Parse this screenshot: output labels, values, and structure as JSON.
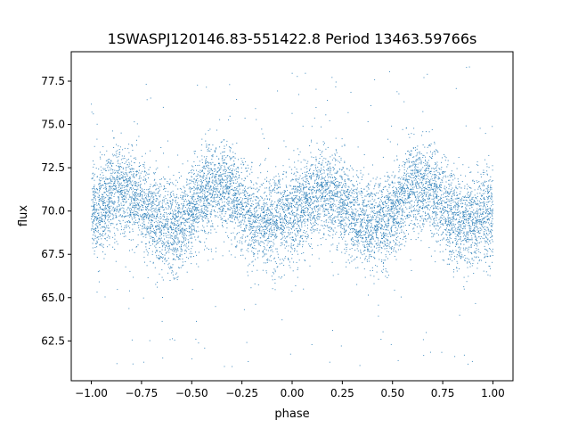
{
  "chart_data": {
    "type": "scatter",
    "title": "1SWASPJ120146.83-551422.8 Period 13463.59766s",
    "xlabel": "phase",
    "ylabel": "flux",
    "xlim": [
      -1.1,
      1.1
    ],
    "ylim": [
      60.2,
      79.2
    ],
    "xticks": [
      -1.0,
      -0.75,
      -0.5,
      -0.25,
      0.0,
      0.25,
      0.5,
      0.75,
      1.0
    ],
    "xtick_labels": [
      "−1.00",
      "−0.75",
      "−0.50",
      "−0.25",
      "0.00",
      "0.25",
      "0.50",
      "0.75",
      "1.00"
    ],
    "yticks": [
      62.5,
      65.0,
      67.5,
      70.0,
      72.5,
      75.0,
      77.5
    ],
    "ytick_labels": [
      "62.5",
      "65.0",
      "67.5",
      "70.0",
      "72.5",
      "75.0",
      "77.5"
    ],
    "grid": false,
    "marker_color": "#1f77b4",
    "series": [
      {
        "name": "",
        "description_of_distribution": "dense scatter; mean flux about 70 with two humps per cycle",
        "x_range": [
          -1.0,
          1.0
        ],
        "mean_curve": {
          "phase": [
            -1.0,
            -0.85,
            -0.6,
            -0.35,
            -0.15,
            0.0,
            0.15,
            0.4,
            0.65,
            0.85,
            1.0
          ],
          "flux": [
            69.9,
            71.2,
            69.1,
            71.5,
            69.3,
            69.9,
            71.2,
            69.1,
            71.5,
            69.3,
            69.9
          ]
        },
        "scatter_sigma": 1.3
      }
    ]
  }
}
